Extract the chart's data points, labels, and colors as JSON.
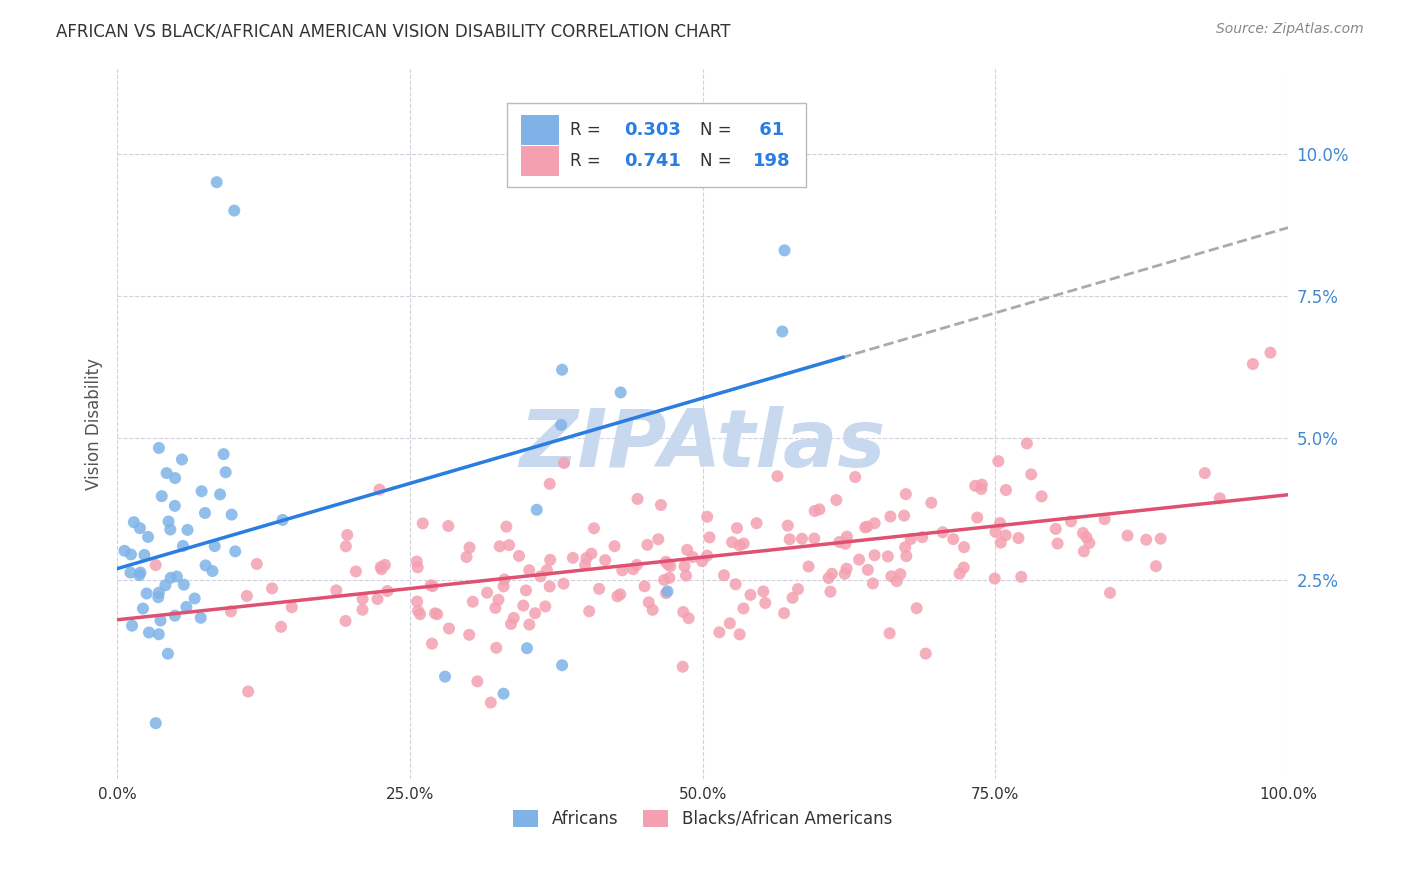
{
  "title": "AFRICAN VS BLACK/AFRICAN AMERICAN VISION DISABILITY CORRELATION CHART",
  "source": "Source: ZipAtlas.com",
  "ylabel": "Vision Disability",
  "xlim": [
    0.0,
    1.0
  ],
  "ylim": [
    -0.01,
    0.115
  ],
  "yticks": [
    0.025,
    0.05,
    0.075,
    0.1
  ],
  "ytick_labels": [
    "2.5%",
    "5.0%",
    "7.5%",
    "10.0%"
  ],
  "xticks": [
    0.0,
    0.25,
    0.5,
    0.75,
    1.0
  ],
  "xtick_labels": [
    "0.0%",
    "25.0%",
    "50.0%",
    "75.0%",
    "100.0%"
  ],
  "african_R": 0.303,
  "african_N": 61,
  "black_R": 0.741,
  "black_N": 198,
  "african_color": "#7fb3e8",
  "black_color": "#f4a0b0",
  "african_line_color": "#2a7de1",
  "black_line_color": "#e05070",
  "dashed_line_color": "#aaaaaa",
  "background_color": "#ffffff",
  "grid_color": "#d0d0e0",
  "watermark_color": "#c8d8ee",
  "legend_r_color": "#2a7de1",
  "title_color": "#333333",
  "source_color": "#888888",
  "ylabel_color": "#555555",
  "ytick_color": "#4488cc",
  "xtick_color": "#333333",
  "african_intercept": 0.027,
  "african_slope": 0.06,
  "black_intercept": 0.018,
  "black_slope": 0.022
}
